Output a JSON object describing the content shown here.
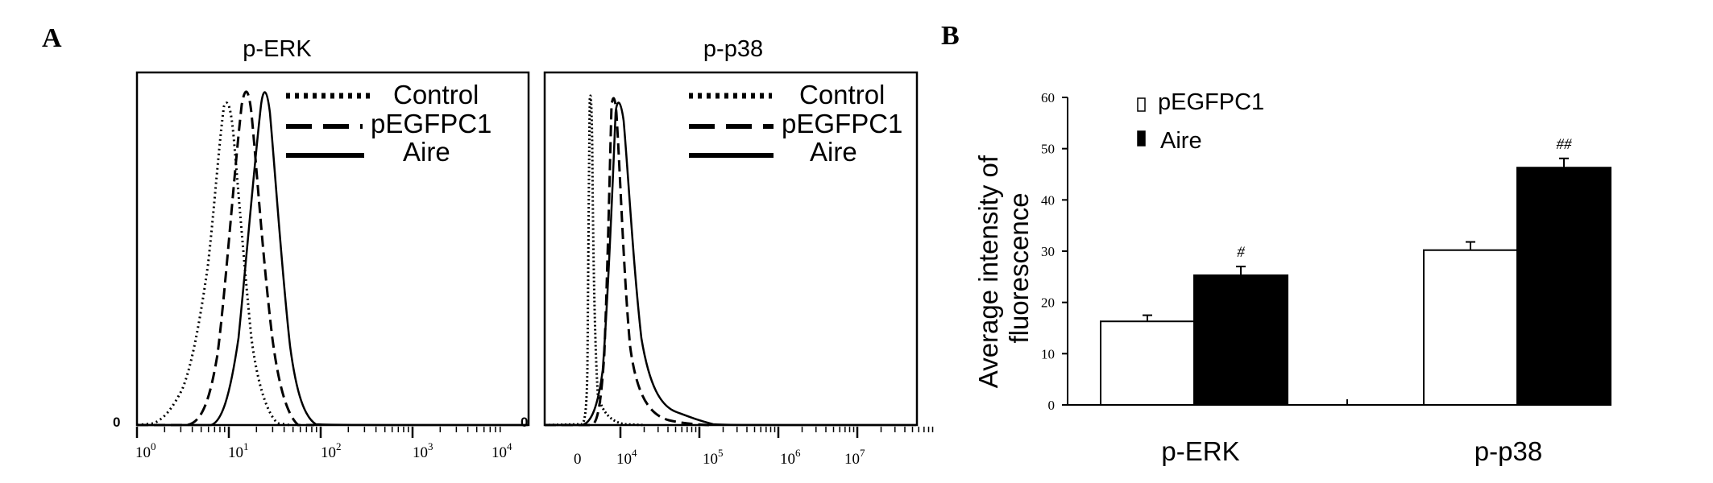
{
  "panel_a": {
    "letter": "A",
    "zero_label": "0",
    "legend": [
      {
        "label": "Control",
        "style": "dotted"
      },
      {
        "label": "pEGFPC1",
        "style": "dashed"
      },
      {
        "label": "Aire",
        "style": "solid"
      }
    ]
  },
  "panel_b": {
    "letter": "B"
  },
  "chart_data": [
    {
      "type": "line",
      "title": "p-ERK",
      "xscale": "log",
      "xticks": [
        {
          "base": "10",
          "exp": "0"
        },
        {
          "base": "10",
          "exp": "1"
        },
        {
          "base": "10",
          "exp": "2"
        },
        {
          "base": "10",
          "exp": "3"
        },
        {
          "base": "10",
          "exp": "4"
        }
      ],
      "yticks": [
        "0"
      ],
      "series": [
        {
          "name": "Control",
          "style": "dotted",
          "peak_log10": 0.9
        },
        {
          "name": "pEGFPC1",
          "style": "dashed",
          "peak_log10": 1.1
        },
        {
          "name": "Aire",
          "style": "solid",
          "peak_log10": 1.35
        }
      ]
    },
    {
      "type": "line",
      "title": "p-p38",
      "xscale": "log",
      "xticks": [
        {
          "base": "0",
          "exp": ""
        },
        {
          "base": "10",
          "exp": "4"
        },
        {
          "base": "10",
          "exp": "5"
        },
        {
          "base": "10",
          "exp": "6"
        },
        {
          "base": "10",
          "exp": "7"
        }
      ],
      "yticks": [
        "0"
      ],
      "series": [
        {
          "name": "Control",
          "style": "dotted"
        },
        {
          "name": "pEGFPC1",
          "style": "dashed"
        },
        {
          "name": "Aire",
          "style": "solid"
        }
      ]
    },
    {
      "type": "bar",
      "categories": [
        "p-ERK",
        "p-p38"
      ],
      "series": [
        {
          "name": "pEGFPC1",
          "color": "#ffffff",
          "values": [
            16.3,
            30.2
          ],
          "errors": [
            1.2,
            1.6
          ]
        },
        {
          "name": "Aire",
          "color": "#000000",
          "values": [
            25.3,
            46.3
          ],
          "errors": [
            1.7,
            1.8
          ]
        }
      ],
      "annotations": [
        "#",
        "##"
      ],
      "ylabel": [
        "Average intensity of",
        "fluorescence"
      ],
      "ylim": [
        0,
        60
      ],
      "yticks": [
        "0",
        "10",
        "20",
        "30",
        "40",
        "50",
        "60"
      ],
      "legend_position": "top-left"
    }
  ]
}
